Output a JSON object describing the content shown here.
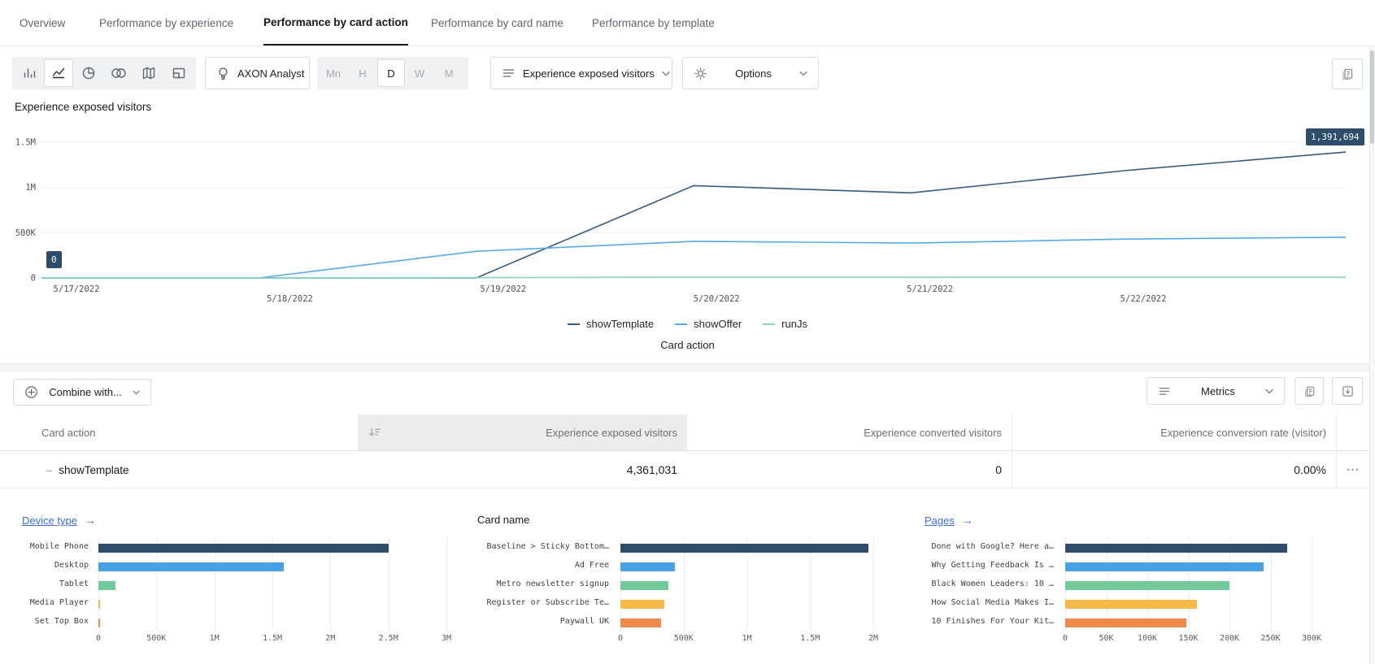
{
  "tabs": [
    {
      "label": "Overview",
      "active": false
    },
    {
      "label": "Performance by experience",
      "active": false
    },
    {
      "label": "Performance by card action",
      "active": true
    },
    {
      "label": "Performance by card name",
      "active": false
    },
    {
      "label": "Performance by template",
      "active": false
    }
  ],
  "toolbar": {
    "axon_button": "AXON Analyst",
    "granularity": {
      "options": [
        "Mn",
        "H",
        "D",
        "W",
        "M"
      ],
      "selected": "D"
    },
    "metric_selector": "Experience exposed visitors",
    "options_button": "Options"
  },
  "chart_data": [
    {
      "type": "line",
      "title": "Experience exposed visitors",
      "xlabel": "Card action",
      "x_tick_labels": [
        "5/17/2022",
        "5/18/2022",
        "5/19/2022",
        "5/20/2022",
        "5/21/2022",
        "5/22/2022"
      ],
      "num_points": 7,
      "y_tick_labels": [
        "0",
        "500K",
        "1M",
        "1.5M"
      ],
      "y_tick_values": [
        0,
        500000,
        1000000,
        1500000
      ],
      "ylim": [
        0,
        1500000
      ],
      "legend_position": "bottom",
      "grid": true,
      "series": [
        {
          "name": "showTemplate",
          "color": "#3a5a7d",
          "values": [
            0,
            0,
            0,
            1020000,
            940000,
            1190000,
            1391694
          ]
        },
        {
          "name": "showOffer",
          "color": "#57aae8",
          "values": [
            0,
            0,
            295000,
            405000,
            385000,
            430000,
            450000
          ]
        },
        {
          "name": "runJs",
          "color": "#8ad6c2",
          "values": [
            0,
            0,
            4000,
            9000,
            9000,
            9000,
            9000
          ]
        }
      ],
      "annotations": {
        "max": "1,391,694",
        "min": "0"
      }
    },
    {
      "type": "bar",
      "title": "Device type",
      "title_is_link": true,
      "categories": [
        "Mobile Phone",
        "Desktop",
        "Tablet",
        "Media Player",
        "Set Top Box"
      ],
      "values": [
        2500000,
        1600000,
        147000,
        12000,
        12000
      ],
      "colors": [
        "#2e4d6d",
        "#46a1e6",
        "#72ca9b",
        "#f7b84a",
        "#f08a4c"
      ],
      "x_tick_labels": [
        "0",
        "500K",
        "1M",
        "1.5M",
        "2M",
        "2.5M",
        "3M"
      ],
      "xlim": [
        0,
        3000000
      ]
    },
    {
      "type": "bar",
      "title": "Card name",
      "title_is_link": false,
      "categories": [
        "Baseline > Sticky Bottom…",
        "Ad Free",
        "Metro newsletter signup",
        "Register or Subscribe Te…",
        "Paywall UK"
      ],
      "values": [
        1960000,
        430000,
        380000,
        345000,
        320000
      ],
      "colors": [
        "#2e4d6d",
        "#46a1e6",
        "#72ca9b",
        "#f7b84a",
        "#f08a4c"
      ],
      "x_tick_labels": [
        "0",
        "500K",
        "1M",
        "1.5M",
        "2M"
      ],
      "xlim": [
        0,
        2000000
      ]
    },
    {
      "type": "bar",
      "title": "Pages",
      "title_is_link": true,
      "categories": [
        "Done with Google? Here a…",
        "Why Getting Feedback Is …",
        "Black Women Leaders: 10 …",
        "How Social Media Makes I…",
        "10 Finishes For Your Kit…"
      ],
      "values": [
        270000,
        242000,
        200000,
        160000,
        147000
      ],
      "colors": [
        "#2e4d6d",
        "#46a1e6",
        "#72ca9b",
        "#f7b84a",
        "#f08a4c"
      ],
      "x_tick_labels": [
        "0",
        "50K",
        "100K",
        "150K",
        "200K",
        "250K",
        "300K"
      ],
      "xlim": [
        0,
        300000
      ]
    }
  ],
  "table_toolbar": {
    "combine_button": "Combine with...",
    "metrics_button": "Metrics"
  },
  "table": {
    "columns": [
      "Card action",
      "Experience exposed visitors",
      "Experience converted visitors",
      "Experience conversion rate (visitor)"
    ],
    "sorted_column": "Experience exposed visitors",
    "rows": [
      {
        "prefix": "–",
        "cells": [
          "showTemplate",
          "4,361,031",
          "0",
          "0.00%"
        ]
      }
    ]
  }
}
